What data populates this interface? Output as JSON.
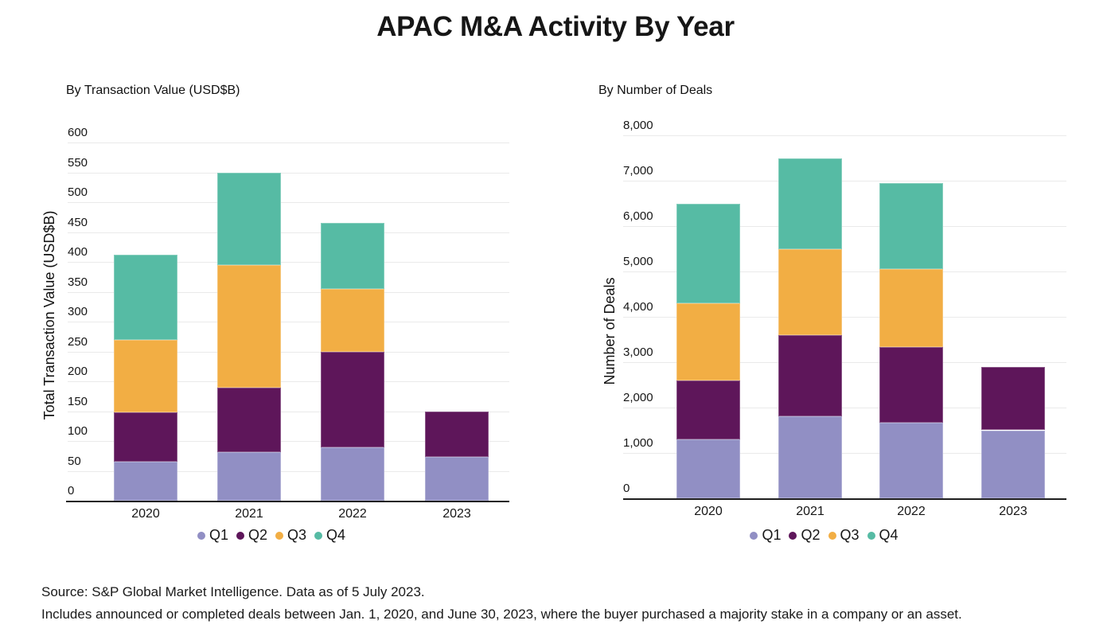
{
  "title": "APAC M&A Activity By Year",
  "colors": {
    "Q1": "#918FC4",
    "Q2": "#5E165A",
    "Q3": "#F2AE44",
    "Q4": "#56BBA4"
  },
  "footer": {
    "line1": "Source: S&P Global Market Intelligence. Data as of 5 July 2023.",
    "line2": "Includes announced or completed deals between Jan. 1, 2020, and June  30, 2023, where the buyer purchased a majority stake in a company or an asset."
  },
  "chart_data": [
    {
      "type": "bar",
      "stacked": true,
      "subtitle": "By Transaction Value (USD$B)",
      "ylabel": "Total Transaction Value (USD$B)",
      "xlabel": "",
      "categories": [
        "2020",
        "2021",
        "2022",
        "2023"
      ],
      "series": [
        {
          "name": "Q1",
          "values": [
            65,
            82,
            90,
            73
          ]
        },
        {
          "name": "Q2",
          "values": [
            83,
            108,
            159,
            76
          ]
        },
        {
          "name": "Q3",
          "values": [
            122,
            205,
            106,
            0
          ]
        },
        {
          "name": "Q4",
          "values": [
            142,
            155,
            110,
            0
          ]
        }
      ],
      "ylim": [
        0,
        600
      ],
      "ytick_step": 50,
      "tick_format": "plain",
      "grid": true,
      "legend_position": "bottom"
    },
    {
      "type": "bar",
      "stacked": true,
      "subtitle": "By Number of Deals",
      "ylabel": "Number of Deals",
      "xlabel": "",
      "categories": [
        "2020",
        "2021",
        "2022",
        "2023"
      ],
      "series": [
        {
          "name": "Q1",
          "values": [
            1300,
            1800,
            1670,
            1500
          ]
        },
        {
          "name": "Q2",
          "values": [
            1300,
            1800,
            1670,
            1400
          ]
        },
        {
          "name": "Q3",
          "values": [
            1700,
            1900,
            1710,
            0
          ]
        },
        {
          "name": "Q4",
          "values": [
            2200,
            2000,
            1900,
            0
          ]
        }
      ],
      "ylim": [
        0,
        8000
      ],
      "ytick_step": 1000,
      "tick_format": "comma",
      "grid": true,
      "legend_position": "bottom"
    }
  ]
}
